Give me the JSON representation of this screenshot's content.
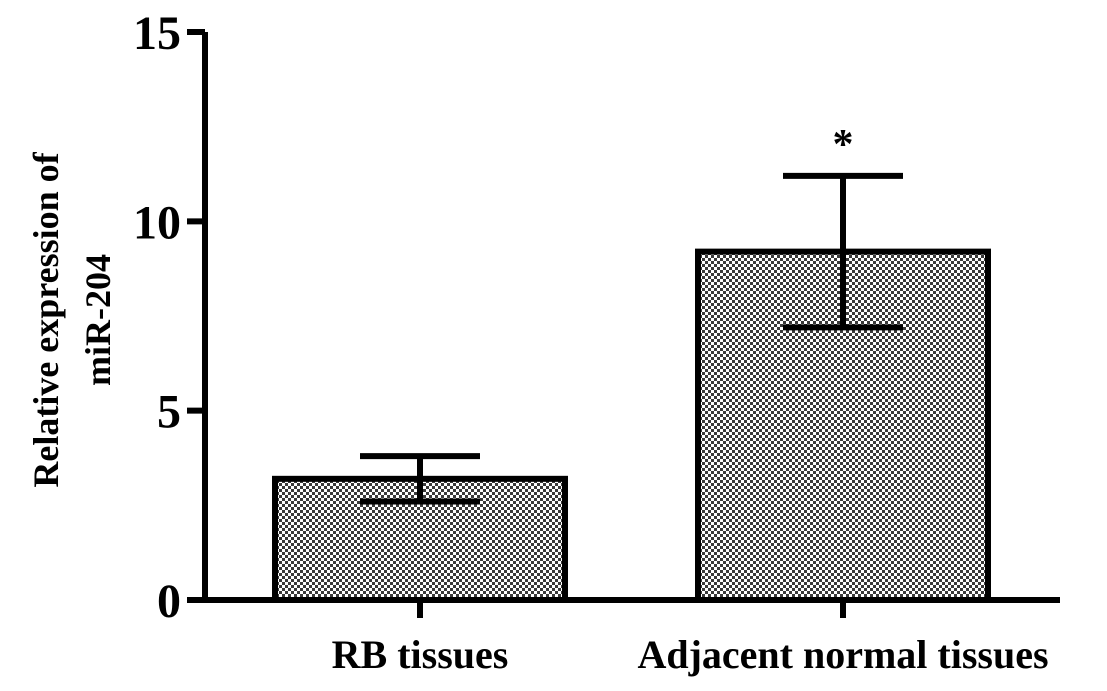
{
  "chart_data": {
    "type": "bar",
    "categories": [
      "RB tissues",
      "Adjacent normal tissues"
    ],
    "values": [
      3.2,
      9.2
    ],
    "errors": [
      0.6,
      2.0
    ],
    "annotations": [
      "",
      "*"
    ],
    "ylabel_lines": [
      "Relative expression of",
      "miR-204"
    ],
    "xlabel": "",
    "title": "",
    "ylim": [
      0,
      15
    ],
    "yticks": [
      0,
      5,
      10,
      15
    ],
    "ytick_labels": [
      "0",
      "5",
      "10",
      "15"
    ],
    "grid": false,
    "legend": "none",
    "bar_pattern": "checkered",
    "colors": {
      "bar_fill_light": "#ffffff",
      "bar_fill_dark": "#3a3a3a",
      "stroke": "#000000"
    }
  }
}
